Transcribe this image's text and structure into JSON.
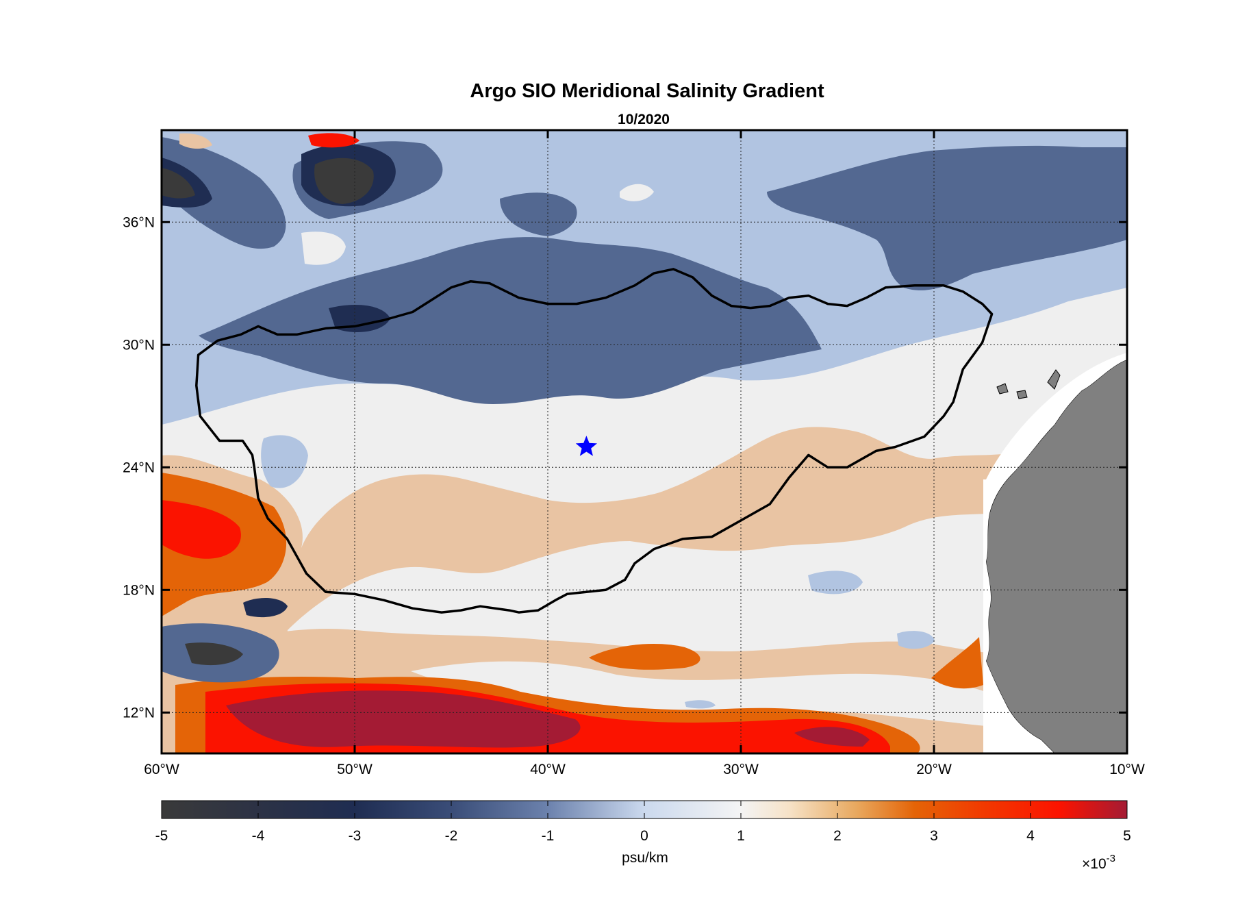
{
  "chart_data": {
    "type": "heatmap",
    "title": "Argo SIO Meridional Salinity Gradient",
    "subtitle": "10/2020",
    "x_axis": {
      "range": [
        -60,
        -10
      ],
      "ticks": [
        -60,
        -50,
        -40,
        -30,
        -20,
        -10
      ],
      "tick_labels": [
        "60°W",
        "50°W",
        "40°W",
        "30°W",
        "20°W",
        "10°W"
      ]
    },
    "y_axis": {
      "range": [
        10,
        40.5
      ],
      "ticks": [
        12,
        18,
        24,
        30,
        36
      ],
      "tick_labels": [
        "12°N",
        "18°N",
        "24°N",
        "30°N",
        "36°N"
      ]
    },
    "grid": true,
    "colorbar": {
      "range": [
        -5,
        5
      ],
      "ticks": [
        -5,
        -4,
        -3,
        -2,
        -1,
        0,
        1,
        2,
        3,
        4,
        5
      ],
      "tick_labels": [
        "-5",
        "-4",
        "-3",
        "-2",
        "-1",
        "0",
        "1",
        "2",
        "3",
        "4",
        "5"
      ],
      "label": "psu/km",
      "exponent_prefix": "×10",
      "exponent": "-3",
      "colors": [
        "#3a3a3a",
        "#1f2d52",
        "#536891",
        "#b1c4e1",
        "#efefef",
        "#e9c4a3",
        "#e46407",
        "#fb1300",
        "#a41b34"
      ]
    },
    "marker": {
      "type": "star",
      "lon": -38,
      "lat": 25,
      "color": "#0000ff"
    },
    "contour_outline": [
      [
        -58.2,
        28.0
      ],
      [
        -58.1,
        29.5
      ],
      [
        -57.1,
        30.2
      ],
      [
        -55.9,
        30.5
      ],
      [
        -55.0,
        30.9
      ],
      [
        -54.0,
        30.5
      ],
      [
        -53.0,
        30.5
      ],
      [
        -51.5,
        30.8
      ],
      [
        -50.0,
        30.9
      ],
      [
        -48.5,
        31.2
      ],
      [
        -47.0,
        31.6
      ],
      [
        -46.0,
        32.2
      ],
      [
        -45.0,
        32.8
      ],
      [
        -44.0,
        33.1
      ],
      [
        -43.0,
        33.0
      ],
      [
        -41.5,
        32.3
      ],
      [
        -40.0,
        32.0
      ],
      [
        -38.5,
        32.0
      ],
      [
        -37.0,
        32.3
      ],
      [
        -35.5,
        32.9
      ],
      [
        -34.5,
        33.5
      ],
      [
        -33.5,
        33.7
      ],
      [
        -32.5,
        33.3
      ],
      [
        -31.5,
        32.4
      ],
      [
        -30.5,
        31.9
      ],
      [
        -29.5,
        31.8
      ],
      [
        -28.5,
        31.9
      ],
      [
        -27.5,
        32.3
      ],
      [
        -26.5,
        32.4
      ],
      [
        -25.5,
        32.0
      ],
      [
        -24.5,
        31.9
      ],
      [
        -23.5,
        32.3
      ],
      [
        -22.5,
        32.8
      ],
      [
        -21.0,
        32.9
      ],
      [
        -19.5,
        32.9
      ],
      [
        -18.5,
        32.6
      ],
      [
        -17.5,
        32.0
      ],
      [
        -17.0,
        31.5
      ],
      [
        -17.5,
        30.1
      ],
      [
        -18.5,
        28.8
      ],
      [
        -19.0,
        27.2
      ],
      [
        -19.5,
        26.5
      ],
      [
        -20.5,
        25.5
      ],
      [
        -22.0,
        25.0
      ],
      [
        -23.0,
        24.8
      ],
      [
        -24.5,
        24.0
      ],
      [
        -25.5,
        24.0
      ],
      [
        -26.5,
        24.6
      ],
      [
        -27.5,
        23.5
      ],
      [
        -28.5,
        22.2
      ],
      [
        -30.0,
        21.4
      ],
      [
        -31.5,
        20.6
      ],
      [
        -33.0,
        20.5
      ],
      [
        -34.5,
        20.0
      ],
      [
        -35.5,
        19.3
      ],
      [
        -36.0,
        18.5
      ],
      [
        -37.0,
        18.0
      ],
      [
        -38.0,
        17.9
      ],
      [
        -39.0,
        17.8
      ],
      [
        -39.6,
        17.5
      ],
      [
        -40.5,
        17.0
      ],
      [
        -41.5,
        16.9
      ],
      [
        -42.0,
        17.0
      ],
      [
        -43.5,
        17.2
      ],
      [
        -44.5,
        17.0
      ],
      [
        -45.5,
        16.9
      ],
      [
        -47.0,
        17.1
      ],
      [
        -48.5,
        17.5
      ],
      [
        -50.0,
        17.8
      ],
      [
        -51.5,
        17.9
      ],
      [
        -52.5,
        18.8
      ],
      [
        -53.5,
        20.5
      ],
      [
        -54.5,
        21.5
      ],
      [
        -55.0,
        22.5
      ],
      [
        -55.2,
        24.0
      ],
      [
        -55.3,
        24.6
      ],
      [
        -55.8,
        25.3
      ],
      [
        -57.0,
        25.3
      ],
      [
        -58.0,
        26.5
      ],
      [
        -58.2,
        28.0
      ]
    ]
  }
}
